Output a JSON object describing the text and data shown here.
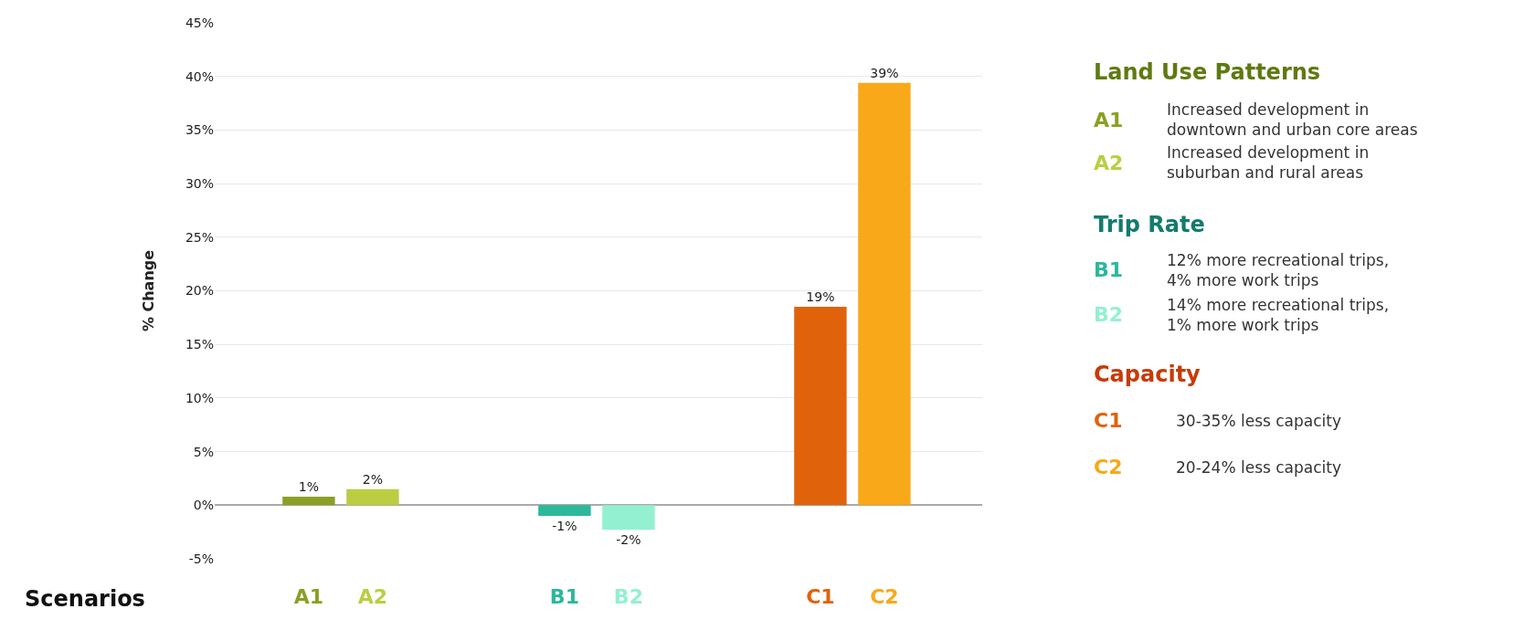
{
  "chart_data": {
    "type": "bar",
    "xlabel": "Scenarios",
    "ylabel": "% Change",
    "categories": [
      "A1",
      "A2",
      null,
      null,
      "B1",
      "B2",
      null,
      null,
      "C1",
      "C2"
    ],
    "values": [
      0.8,
      1.5,
      null,
      null,
      -1.0,
      -2.3,
      null,
      null,
      18.5,
      39.4
    ],
    "colors": [
      "#8ba023",
      "#bccd42",
      "#888888",
      "#888888",
      "#2cb89b",
      "#93f0d0",
      "#888888",
      "#888888",
      "#e0620b",
      "#f8a818"
    ],
    "value_labels": [
      "1%",
      "2%",
      null,
      null,
      "-1%",
      "-2%",
      null,
      null,
      "19%",
      "39%"
    ],
    "ylim": [
      -5,
      45
    ],
    "yticks": [
      {
        "value": -5,
        "label": "-5%"
      },
      {
        "value": 0,
        "label": "0%"
      },
      {
        "value": 5,
        "label": "5%"
      },
      {
        "value": 10,
        "label": "10%"
      },
      {
        "value": 15,
        "label": "15%"
      },
      {
        "value": 20,
        "label": "20%"
      },
      {
        "value": 25,
        "label": "25%"
      },
      {
        "value": 30,
        "label": "30%"
      },
      {
        "value": 35,
        "label": "35%"
      },
      {
        "value": 40,
        "label": "40%"
      },
      {
        "value": 45,
        "label": "45%"
      }
    ],
    "grid": "y",
    "annotations": [
      "Land Use Patterns",
      "Increased development in\ndowntown and urban core areas",
      "Increased development in\nsuburban and rural areas",
      "Trip Rate",
      "12% more recreational trips,\n4% more work trips",
      "14% more recreational trips,\n1% more work trips",
      "Capacity",
      "30-35% less capacity",
      "20-24% less capacity"
    ]
  }
}
